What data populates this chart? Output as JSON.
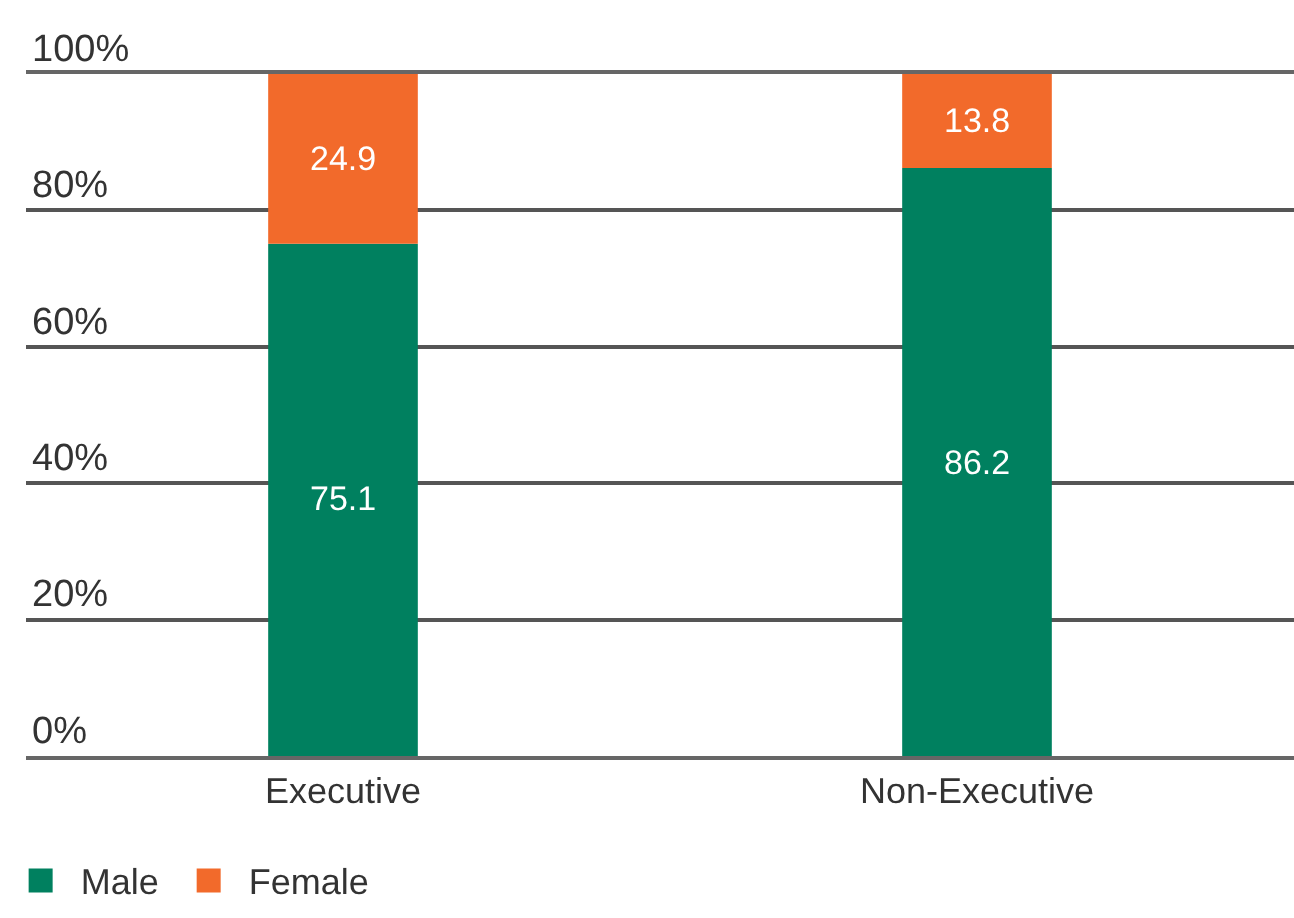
{
  "chart_data": {
    "type": "bar",
    "stacked": true,
    "categories": [
      "Executive",
      "Non-Executive"
    ],
    "series": [
      {
        "name": "Male",
        "color": "#00805f",
        "values": [
          75.1,
          86.2
        ]
      },
      {
        "name": "Female",
        "color": "#f26a2b",
        "values": [
          24.9,
          13.8
        ]
      }
    ],
    "ylim": [
      0,
      100
    ],
    "yticks": [
      {
        "value": 0,
        "label": "0%"
      },
      {
        "value": 20,
        "label": "20%"
      },
      {
        "value": 40,
        "label": "40%"
      },
      {
        "value": 60,
        "label": "60%"
      },
      {
        "value": 80,
        "label": "80%"
      },
      {
        "value": 100,
        "label": "100%"
      }
    ],
    "grid": "y",
    "legend": "bottom left",
    "data_labels": true
  }
}
